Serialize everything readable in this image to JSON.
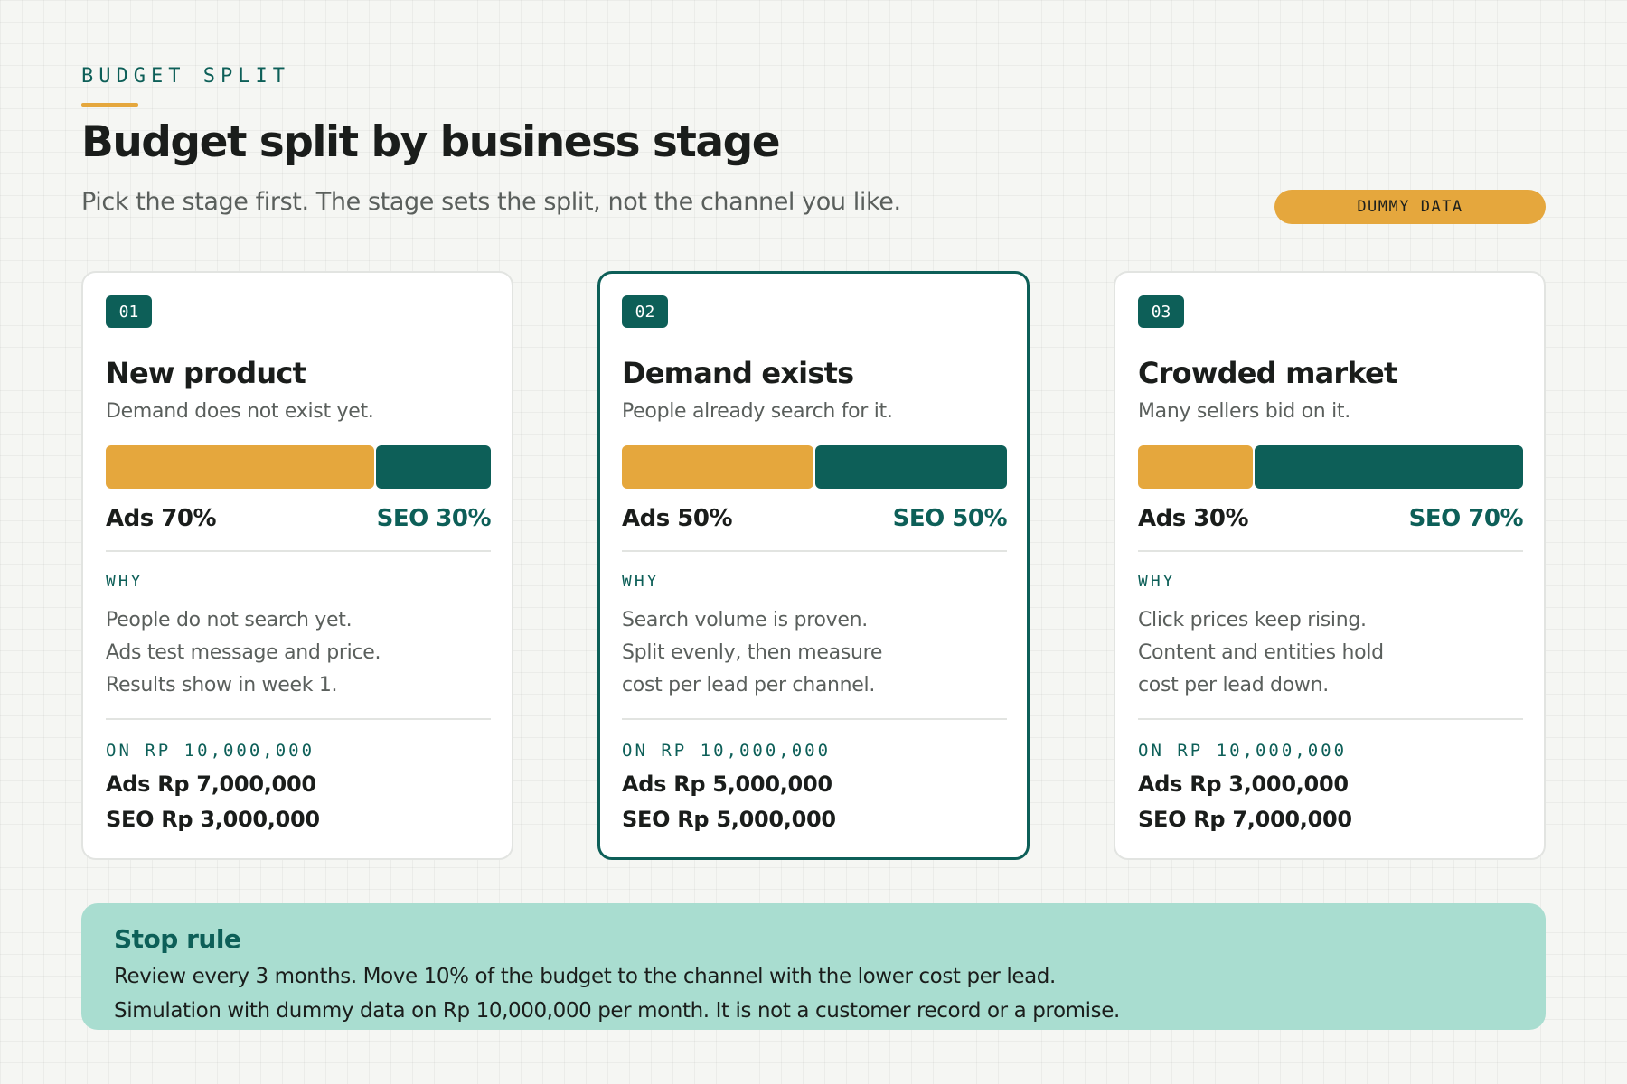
{
  "header": {
    "eyebrow": "BUDGET SPLIT",
    "title": "Budget split by business stage",
    "subtitle": "Pick the stage first. The stage sets the split, not the channel you like.",
    "badge": "DUMMY DATA"
  },
  "colors": {
    "accent": "#e5a73d",
    "brand": "#0d5f58",
    "callout_bg": "#a9ddd0"
  },
  "cards": [
    {
      "number": "01",
      "title": "New product",
      "subtitle": "Demand does not exist yet.",
      "ads_share": 0.7,
      "seo_share": 0.3,
      "ads_label": "Ads 70%",
      "seo_label": "SEO 30%",
      "why_label": "WHY",
      "why": [
        "People do not search yet.",
        "Ads test message and price.",
        "Results show in week 1."
      ],
      "budget_label": "ON RP 10,000,000",
      "ads_amount": "Ads Rp 7,000,000",
      "seo_amount": "SEO Rp 3,000,000",
      "selected": false
    },
    {
      "number": "02",
      "title": "Demand exists",
      "subtitle": "People already search for it.",
      "ads_share": 0.5,
      "seo_share": 0.5,
      "ads_label": "Ads 50%",
      "seo_label": "SEO 50%",
      "why_label": "WHY",
      "why": [
        "Search volume is proven.",
        "Split evenly, then measure",
        "cost per lead per channel."
      ],
      "budget_label": "ON RP 10,000,000",
      "ads_amount": "Ads Rp 5,000,000",
      "seo_amount": "SEO Rp 5,000,000",
      "selected": true
    },
    {
      "number": "03",
      "title": "Crowded market",
      "subtitle": "Many sellers bid on it.",
      "ads_share": 0.3,
      "seo_share": 0.7,
      "ads_label": "Ads 30%",
      "seo_label": "SEO 70%",
      "why_label": "WHY",
      "why": [
        "Click prices keep rising.",
        "Content and entities hold",
        "cost per lead down."
      ],
      "budget_label": "ON RP 10,000,000",
      "ads_amount": "Ads Rp 3,000,000",
      "seo_amount": "SEO Rp 7,000,000",
      "selected": false
    }
  ],
  "stop_rule": {
    "title": "Stop rule",
    "lines": [
      "Review every 3 months. Move 10% of the budget to the channel with the lower cost per lead.",
      "Simulation with dummy data on Rp 10,000,000 per month. It is not a customer record or a promise."
    ]
  }
}
